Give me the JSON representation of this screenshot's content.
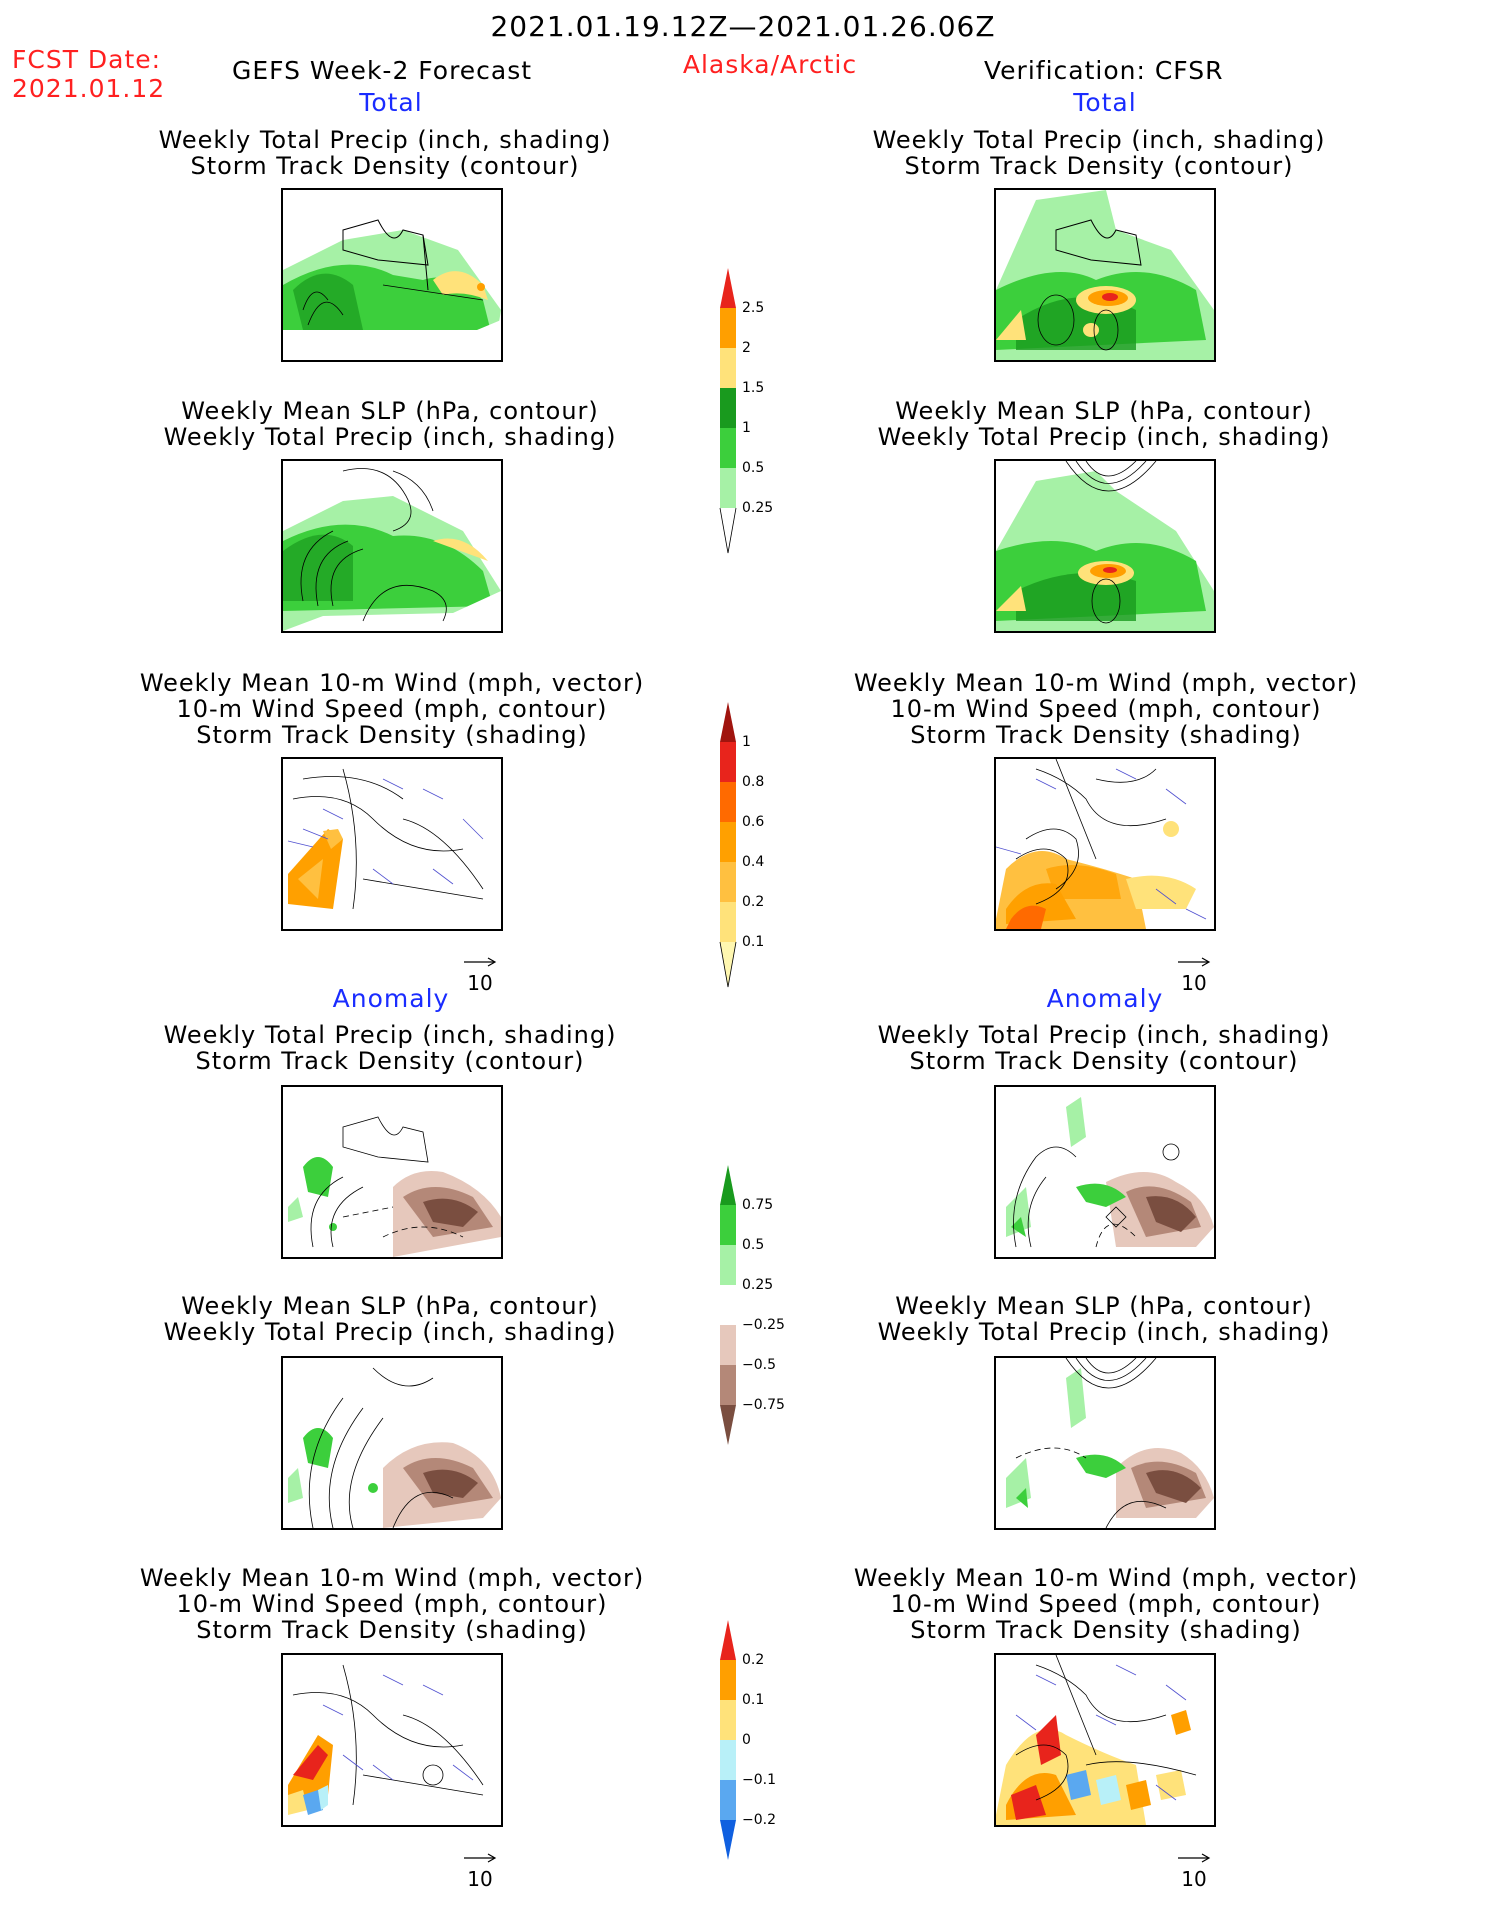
{
  "header": {
    "period": "2021.01.19.12Z—2021.01.26.06Z",
    "fcst_label": "FCST Date:",
    "fcst_date": "2021.01.12",
    "left_product": "GEFS Week-2 Forecast",
    "region": "Alaska/Arctic",
    "right_product": "Verification: CFSR"
  },
  "sections": {
    "total": "Total",
    "anomaly": "Anomaly"
  },
  "titles": {
    "precip_storm": [
      "Weekly Total Precip (inch, shading)",
      "Storm Track Density (contour)"
    ],
    "slp_precip": [
      "Weekly Mean SLP (hPa, contour)",
      "Weekly Total Precip (inch, shading)"
    ],
    "wind_storm": [
      "Weekly Mean 10-m Wind (mph, vector)",
      "10-m Wind Speed (mph, contour)",
      "Storm Track Density (shading)"
    ]
  },
  "vector_scale": "10",
  "colorbars": {
    "total_precip": {
      "labels": [
        "2.5",
        "2",
        "1.5",
        "1",
        "0.5",
        "0.25"
      ],
      "colors": [
        "#e8241c",
        "#ff9f00",
        "#ffe27a",
        "#199a1e",
        "#3ccf3c",
        "#a6f1a6"
      ]
    },
    "total_track": {
      "labels": [
        "1",
        "0.8",
        "0.6",
        "0.4",
        "0.2",
        "0.1"
      ],
      "colors": [
        "#a0140e",
        "#e8241c",
        "#ff6a00",
        "#ffa000",
        "#ffc040",
        "#ffe27a",
        "#fff7b0"
      ]
    },
    "anom_precip": {
      "labels": [
        "0.75",
        "0.5",
        "0.25",
        "−0.25",
        "−0.5",
        "−0.75"
      ],
      "colors": [
        "#199a1e",
        "#3ccf3c",
        "#a6f1a6",
        "#ffffff",
        "#e6c8bc",
        "#b48878",
        "#7a4e40"
      ]
    },
    "anom_track": {
      "labels": [
        "0.2",
        "0.1",
        "0",
        "−0.1",
        "−0.2"
      ],
      "colors": [
        "#e8241c",
        "#ff9f00",
        "#ffe27a",
        "#b8f0f8",
        "#5aa8f0",
        "#1060e0"
      ]
    }
  },
  "colors": {
    "red_text": "#ff2020",
    "blue_text": "#1a2cff",
    "vector": "#5050d0"
  }
}
